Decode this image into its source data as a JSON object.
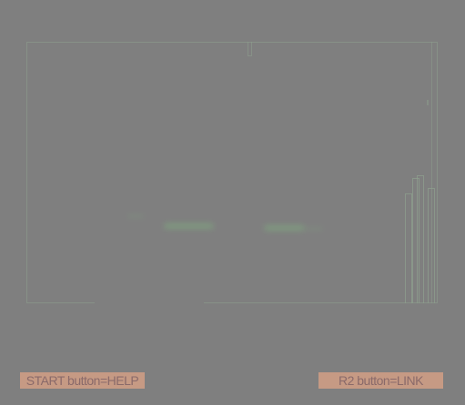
{
  "hints": {
    "start": "START button=HELP",
    "r2": "R2 button=LINK"
  },
  "gauges": {
    "levels": [
      0.42,
      0.48,
      0.49,
      0.44
    ]
  },
  "colors": {
    "background": "#7f7f7f",
    "frame": "#8ea08e",
    "hint_bg": "#c69a84",
    "hint_text": "#8a6a6a"
  }
}
